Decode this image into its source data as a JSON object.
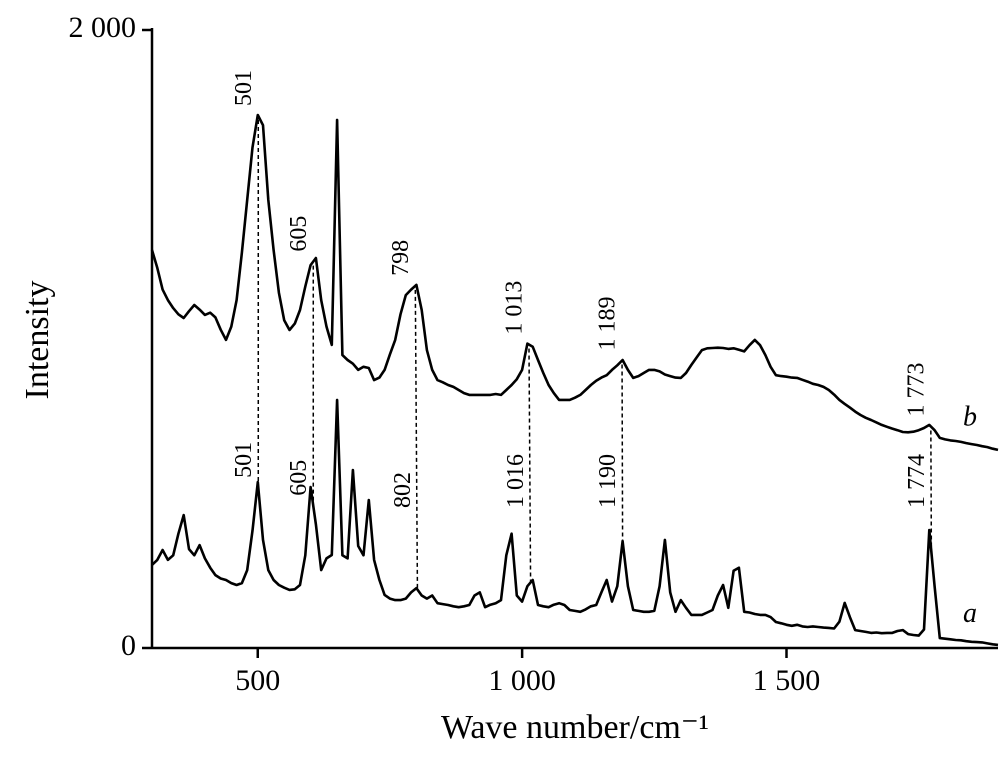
{
  "chart_data": {
    "type": "line",
    "x_label": "Wave number/cm⁻¹",
    "y_label": "Intensity",
    "xlim": [
      300,
      1900
    ],
    "ylim": [
      0,
      2000
    ],
    "xticks": [
      500,
      {
        "value": 1000,
        "label": "1 000"
      },
      {
        "value": 1500,
        "label": "1 500"
      }
    ],
    "yticks": [
      0,
      {
        "value": 2000,
        "label": "2 000"
      }
    ],
    "x": [
      300,
      310,
      320,
      330,
      340,
      350,
      360,
      370,
      380,
      390,
      400,
      410,
      420,
      430,
      440,
      450,
      460,
      470,
      480,
      490,
      500,
      510,
      520,
      530,
      540,
      550,
      560,
      570,
      580,
      590,
      600,
      610,
      620,
      630,
      640,
      650,
      660,
      670,
      680,
      690,
      700,
      710,
      720,
      730,
      740,
      750,
      760,
      770,
      780,
      790,
      800,
      810,
      820,
      830,
      840,
      850,
      860,
      870,
      880,
      890,
      900,
      910,
      920,
      930,
      940,
      950,
      960,
      970,
      980,
      990,
      1000,
      1010,
      1020,
      1030,
      1040,
      1050,
      1060,
      1070,
      1080,
      1090,
      1100,
      1110,
      1120,
      1130,
      1140,
      1150,
      1160,
      1170,
      1180,
      1190,
      1200,
      1210,
      1220,
      1230,
      1240,
      1250,
      1260,
      1270,
      1280,
      1290,
      1300,
      1310,
      1320,
      1330,
      1340,
      1350,
      1360,
      1370,
      1380,
      1390,
      1400,
      1410,
      1420,
      1430,
      1440,
      1450,
      1460,
      1470,
      1480,
      1490,
      1500,
      1510,
      1520,
      1530,
      1540,
      1550,
      1560,
      1570,
      1580,
      1590,
      1600,
      1610,
      1620,
      1630,
      1640,
      1650,
      1660,
      1670,
      1680,
      1690,
      1700,
      1710,
      1720,
      1730,
      1740,
      1750,
      1760,
      1770,
      1780,
      1790,
      1800,
      1810,
      1820,
      1830,
      1840,
      1850,
      1860,
      1870,
      1880,
      1890,
      1900
    ],
    "series": [
      {
        "name": "a",
        "color": "#000000",
        "values": [
          269,
          285,
          317,
          285,
          300,
          370,
          430,
          320,
          300,
          333,
          290,
          260,
          236,
          225,
          220,
          210,
          204,
          210,
          252,
          380,
          537,
          350,
          252,
          220,
          204,
          195,
          188,
          190,
          204,
          300,
          521,
          400,
          252,
          290,
          301,
          803,
          300,
          290,
          576,
          330,
          300,
          479,
          285,
          220,
          172,
          160,
          155,
          155,
          160,
          180,
          194,
          170,
          160,
          170,
          145,
          142,
          139,
          135,
          132,
          135,
          139,
          170,
          180,
          132,
          140,
          145,
          155,
          300,
          370,
          170,
          150,
          200,
          220,
          139,
          135,
          132,
          140,
          145,
          139,
          123,
          120,
          117,
          125,
          135,
          139,
          180,
          220,
          150,
          200,
          346,
          200,
          123,
          120,
          117,
          117,
          120,
          200,
          350,
          180,
          117,
          155,
          130,
          107,
          107,
          107,
          115,
          123,
          170,
          204,
          130,
          250,
          260,
          117,
          115,
          110,
          107,
          107,
          100,
          84,
          80,
          75,
          72,
          75,
          70,
          68,
          70,
          68,
          66,
          65,
          63,
          85,
          146,
          100,
          58,
          55,
          52,
          49,
          50,
          48,
          49,
          49,
          55,
          58,
          45,
          42,
          40,
          60,
          382,
          200,
          32,
          30,
          28,
          26,
          25,
          22,
          20,
          19,
          18,
          15,
          12,
          10
        ]
      },
      {
        "name": "b",
        "color": "#000000",
        "values": [
          1288,
          1230,
          1160,
          1126,
          1100,
          1080,
          1068,
          1090,
          1110,
          1095,
          1078,
          1085,
          1070,
          1030,
          997,
          1040,
          1126,
          1280,
          1450,
          1620,
          1725,
          1692,
          1450,
          1288,
          1150,
          1061,
          1029,
          1050,
          1094,
          1170,
          1239,
          1262,
          1126,
          1040,
          981,
          1709,
          948,
          932,
          920,
          900,
          910,
          906,
          867,
          875,
          900,
          950,
          997,
          1080,
          1142,
          1160,
          1175,
          1094,
          964,
          900,
          867,
          860,
          851,
          845,
          835,
          825,
          819,
          819,
          819,
          819,
          819,
          822,
          819,
          835,
          851,
          870,
          900,
          985,
          975,
          932,
          890,
          851,
          825,
          803,
          803,
          803,
          810,
          819,
          835,
          851,
          865,
          875,
          883,
          900,
          915,
          932,
          900,
          874,
          880,
          890,
          900,
          900,
          895,
          885,
          880,
          875,
          874,
          890,
          916,
          940,
          964,
          970,
          971,
          972,
          971,
          968,
          970,
          965,
          960,
          980,
          997,
          980,
          948,
          910,
          883,
          880,
          878,
          875,
          874,
          868,
          862,
          855,
          851,
          845,
          835,
          820,
          803,
          790,
          778,
          765,
          754,
          745,
          738,
          730,
          722,
          716,
          710,
          705,
          699,
          698,
          700,
          705,
          712,
          722,
          705,
          680,
          675,
          672,
          670,
          667,
          663,
          660,
          657,
          653,
          650,
          645,
          641
        ]
      }
    ],
    "peak_labels": [
      {
        "a": 501,
        "b": 501
      },
      {
        "a": 605,
        "b": 605
      },
      {
        "a": 802,
        "b": 798
      },
      {
        "a": {
          "value": 1016,
          "label": "1 016"
        },
        "b": {
          "value": 1013,
          "label": "1 013"
        }
      },
      {
        "a": {
          "value": 1190,
          "label": "1 190"
        },
        "b": {
          "value": 1189,
          "label": "1 189"
        }
      },
      {
        "a": {
          "value": 1774,
          "label": "1 774"
        },
        "b": {
          "value": 1773,
          "label": "1 773"
        }
      }
    ]
  }
}
